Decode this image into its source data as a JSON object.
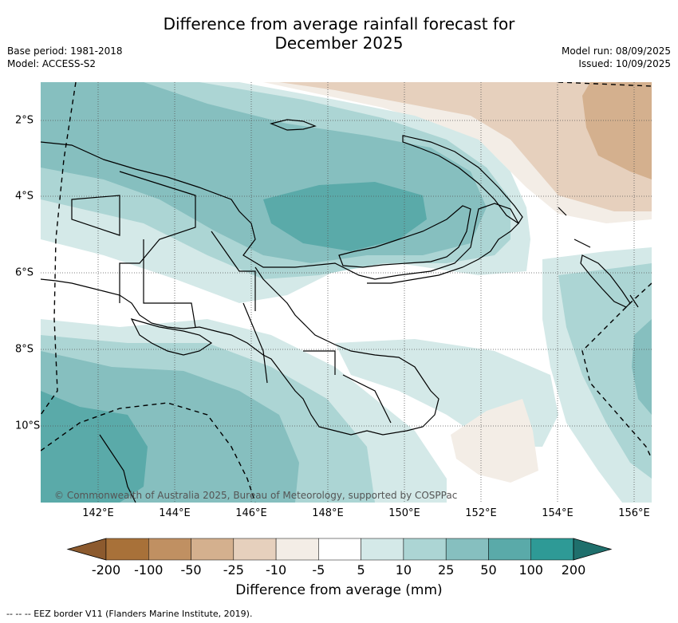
{
  "title_line1": "Difference from average rainfall forecast for",
  "title_line2": "December 2025",
  "meta_left": [
    "Base period: 1981-2018",
    "Model: ACCESS-S2"
  ],
  "meta_right": [
    "Model run: 08/09/2025",
    "Issued: 10/09/2025"
  ],
  "x_ticks": [
    "142°E",
    "144°E",
    "146°E",
    "148°E",
    "150°E",
    "152°E",
    "154°E",
    "156°E"
  ],
  "y_ticks": [
    "2°S",
    "4°S",
    "6°S",
    "8°S",
    "10°S"
  ],
  "copyright": "© Commonwealth of Australia 2025, Bureau of Meteorology, supported by COSPPac",
  "legend": {
    "title": "Difference from average (mm)",
    "labels": [
      "-200",
      "-100",
      "-50",
      "-25",
      "-10",
      "-5",
      "5",
      "10",
      "25",
      "50",
      "100",
      "200"
    ],
    "colors": [
      "#8c5a2e",
      "#a87139",
      "#c09062",
      "#d4b08e",
      "#e6d0bd",
      "#f3ede6",
      "#ffffff",
      "#d4e9e8",
      "#acd5d4",
      "#86bfbf",
      "#5aaaa9",
      "#2e9a96",
      "#1f6f6c"
    ]
  },
  "footer": "--  --  -- EEZ border V11 (Flanders Marine Institute, 2019)."
}
